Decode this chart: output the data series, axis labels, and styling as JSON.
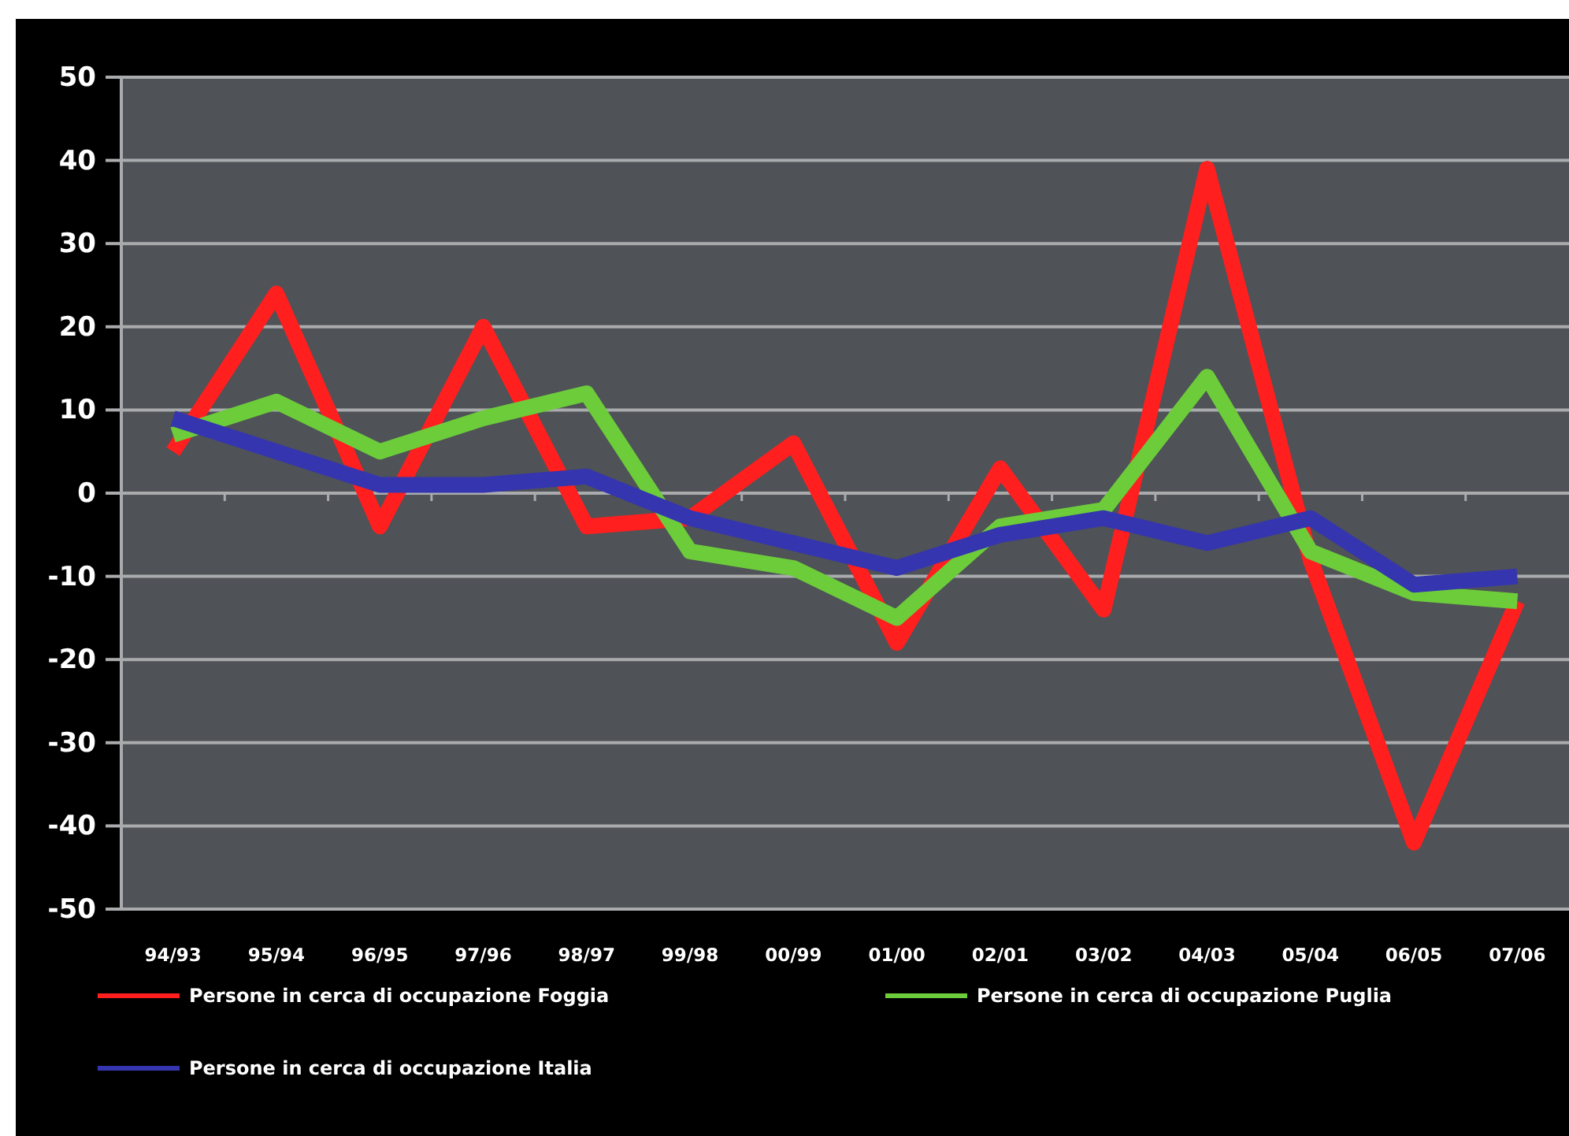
{
  "chart_data": {
    "type": "line",
    "categories": [
      "94/93",
      "95/94",
      "96/95",
      "97/96",
      "98/97",
      "99/98",
      "00/99",
      "01/00",
      "02/01",
      "03/02",
      "04/03",
      "05/04",
      "06/05",
      "07/06"
    ],
    "series": [
      {
        "name": "Persone in cerca di occupazione Foggia",
        "color": "#ff1f1f",
        "values": [
          5,
          24,
          -4,
          20,
          -4,
          -3,
          6,
          -18,
          3,
          -14,
          39,
          -8,
          -42,
          -13
        ]
      },
      {
        "name": "Persone in cerca di occupazione Puglia",
        "color": "#6ccc3a",
        "values": [
          7,
          11,
          5,
          9,
          12,
          -7,
          -9,
          -15,
          -4,
          -2,
          14,
          -7,
          -12,
          -13
        ]
      },
      {
        "name": "Persone in cerca di occupazione Italia",
        "color": "#3535b0",
        "values": [
          9,
          5,
          1,
          1,
          2,
          -3,
          -6,
          -9,
          -5,
          -3,
          -6,
          -3,
          -11,
          -10
        ]
      }
    ],
    "ylim": [
      -50,
      50
    ],
    "yticks": [
      -50,
      -40,
      -30,
      -20,
      -10,
      0,
      10,
      20,
      30,
      40,
      50
    ],
    "grid": "y",
    "legend": "bottom"
  }
}
